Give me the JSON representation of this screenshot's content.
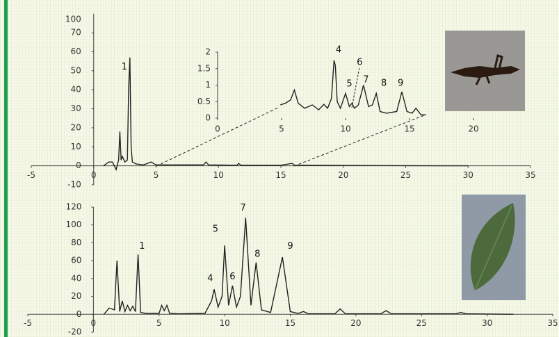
{
  "chart_data": [
    {
      "type": "line",
      "color": "#222",
      "x": [
        0.8,
        1.2,
        1.5,
        1.8,
        2.0,
        2.1,
        2.2,
        2.3,
        2.5,
        2.7,
        2.8,
        2.9,
        3.0,
        3.1,
        3.4,
        4.0,
        4.6,
        5,
        8.8,
        9,
        9.2,
        11.5,
        11.6,
        11.8,
        15,
        15.9,
        16.1,
        16.5,
        20,
        25,
        30
      ],
      "values": [
        0,
        2,
        2,
        -2,
        3,
        18,
        3,
        5,
        2,
        3,
        40,
        57,
        10,
        2,
        1,
        0.5,
        2,
        0.5,
        0.5,
        2,
        0.5,
        0.3,
        1.3,
        0.3,
        0.3,
        1.3,
        0.3,
        0.3,
        0.2,
        0.1,
        0
      ],
      "xlim": [
        -5,
        35
      ],
      "ylim": [
        -10,
        80
      ],
      "xticks": [
        -5,
        0,
        5,
        10,
        15,
        20,
        25,
        30,
        35
      ],
      "yticks": [
        -10,
        0,
        10,
        20,
        30,
        40,
        50,
        60,
        70
      ],
      "y_top_label": "100",
      "peak_labels": [
        "1"
      ]
    },
    {
      "type": "line",
      "color": "#222",
      "x": [
        4.9,
        5.3,
        5.7,
        6.0,
        6.3,
        6.8,
        7.4,
        7.9,
        8.3,
        8.6,
        8.9,
        9.1,
        9.2,
        9.35,
        9.6,
        10.0,
        10.3,
        10.5,
        10.7,
        11.0,
        11.4,
        11.8,
        12.1,
        12.4,
        12.7,
        13.2,
        14.0,
        14.4,
        14.8,
        15.2,
        15.5,
        15.9,
        16.3
      ],
      "values": [
        0.4,
        0.45,
        0.55,
        0.85,
        0.45,
        0.3,
        0.4,
        0.25,
        0.42,
        0.3,
        0.6,
        1.75,
        1.6,
        0.5,
        0.3,
        0.75,
        0.35,
        0.45,
        0.3,
        0.4,
        1.0,
        0.35,
        0.4,
        0.75,
        0.2,
        0.15,
        0.2,
        0.8,
        0.2,
        0.15,
        0.3,
        0.1,
        0.1
      ],
      "xlim": [
        0,
        20
      ],
      "ylim": [
        0,
        2
      ],
      "xticks": [
        0,
        5,
        10,
        15,
        20
      ],
      "yticks": [
        0,
        0.5,
        1,
        1.5,
        2
      ],
      "peak_labels": [
        "4",
        "5",
        "6",
        "7",
        "8",
        "9"
      ]
    },
    {
      "type": "line",
      "color": "#222",
      "x": [
        0.8,
        1.2,
        1.4,
        1.6,
        1.8,
        2.0,
        2.2,
        2.4,
        2.6,
        2.8,
        3.0,
        3.2,
        3.4,
        3.6,
        4.0,
        5.0,
        5.2,
        5.4,
        5.6,
        5.8,
        6.5,
        8.5,
        9.0,
        9.2,
        9.5,
        9.8,
        10.0,
        10.3,
        10.6,
        10.9,
        11.2,
        11.6,
        12.0,
        12.4,
        12.8,
        13.5,
        14.4,
        15.0,
        15.6,
        16.0,
        16.4,
        18.4,
        18.8,
        19.2,
        21.9,
        22.3,
        22.7,
        27.6,
        28,
        28.4,
        32
      ],
      "values": [
        0,
        7,
        6,
        5,
        60,
        3,
        15,
        3,
        10,
        4,
        9,
        3,
        67,
        2,
        1,
        1,
        10,
        4,
        10,
        1,
        0.5,
        1,
        15,
        28,
        8,
        20,
        77,
        10,
        32,
        8,
        20,
        108,
        10,
        58,
        5,
        2,
        64,
        3,
        1,
        3,
        0.5,
        0.5,
        6,
        0.5,
        0.5,
        4,
        0.5,
        0.5,
        2,
        0.5,
        0
      ],
      "xlim": [
        -5,
        35
      ],
      "ylim": [
        -20,
        120
      ],
      "xticks": [
        -5,
        0,
        5,
        10,
        15,
        20,
        25,
        30,
        35
      ],
      "yticks": [
        -20,
        0,
        20,
        40,
        60,
        80,
        100,
        120
      ],
      "peak_labels": [
        "1",
        "4",
        "5",
        "6",
        "7",
        "8",
        "9"
      ]
    }
  ]
}
